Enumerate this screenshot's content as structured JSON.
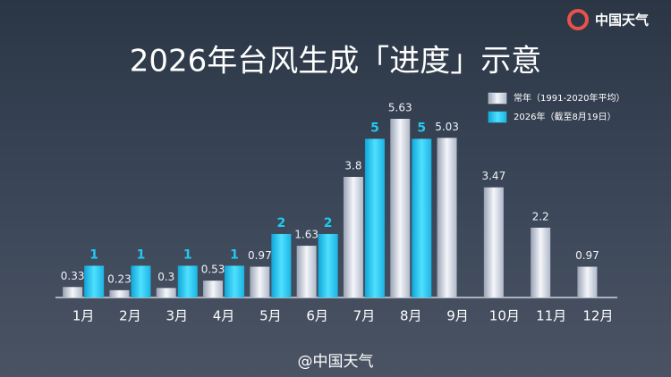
{
  "chart_data": {
    "type": "bar",
    "title": "2026年台风生成「进度」示意",
    "brand": "中国天气",
    "watermark": "@中国天气",
    "categories": [
      "1月",
      "2月",
      "3月",
      "4月",
      "5月",
      "6月",
      "7月",
      "8月",
      "9月",
      "10月",
      "11月",
      "12月"
    ],
    "series": [
      {
        "name": "常年（1991-2020年平均）",
        "color": "#dfe3ec",
        "values": [
          0.33,
          0.23,
          0.3,
          0.53,
          0.97,
          1.63,
          3.8,
          5.63,
          5.03,
          3.47,
          2.2,
          0.97
        ]
      },
      {
        "name": "2026年（截至8月19日）",
        "color": "#22c8f0",
        "values": [
          1,
          1,
          1,
          1,
          2,
          2,
          5,
          5,
          null,
          null,
          null,
          null
        ]
      }
    ]
  }
}
